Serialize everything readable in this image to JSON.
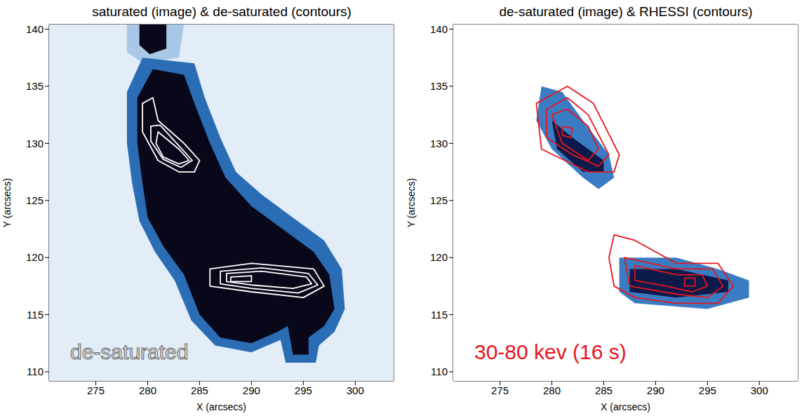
{
  "chart_data": [
    {
      "type": "contour_image",
      "title": "saturated (image) & de-saturated (contours)",
      "xlabel": "X (arcsecs)",
      "ylabel": "Y (arcsecs)",
      "xlim": [
        270.5,
        303.7
      ],
      "ylim": [
        109.2,
        140.4
      ],
      "xticks": [
        275,
        280,
        285,
        290,
        295,
        300
      ],
      "yticks": [
        110,
        115,
        120,
        125,
        130,
        135,
        140
      ],
      "annotation": {
        "text": "de-saturated",
        "color": "#f4f4f4"
      },
      "image": [
        {
          "color": "#e2edf8",
          "points": [
            [
              270.5,
              109.2
            ],
            [
              303.7,
              109.2
            ],
            [
              303.7,
              140.4
            ],
            [
              270.5,
              140.4
            ]
          ]
        },
        {
          "color": "#a9c8e8",
          "points": [
            [
              278,
              140.4
            ],
            [
              283.5,
              140.4
            ],
            [
              283,
              137.5
            ],
            [
              279.5,
              137
            ],
            [
              278,
              138
            ]
          ]
        },
        {
          "color": "#2a6db5",
          "points": [
            [
              279.5,
              137.5
            ],
            [
              284.5,
              137
            ],
            [
              285.5,
              134
            ],
            [
              287,
              130.5
            ],
            [
              288.5,
              127.5
            ],
            [
              291,
              125.5
            ],
            [
              294,
              123.5
            ],
            [
              297,
              121.5
            ],
            [
              298.7,
              119
            ],
            [
              299,
              115.5
            ],
            [
              298,
              113.5
            ],
            [
              296.5,
              112.3
            ],
            [
              296.2,
              110.8
            ],
            [
              293.3,
              110.8
            ],
            [
              292.8,
              112.8
            ],
            [
              290,
              111.7
            ],
            [
              286.5,
              112.3
            ],
            [
              284.2,
              114.5
            ],
            [
              282.6,
              118
            ],
            [
              280.7,
              120.5
            ],
            [
              279.2,
              123.2
            ],
            [
              278.5,
              126.5
            ],
            [
              278,
              130
            ],
            [
              278,
              134.5
            ]
          ]
        },
        {
          "color": "#08081a",
          "points": [
            [
              280.5,
              136.5
            ],
            [
              283.5,
              136
            ],
            [
              284.5,
              133.5
            ],
            [
              286,
              130
            ],
            [
              287.5,
              127
            ],
            [
              290,
              124.5
            ],
            [
              293,
              122.5
            ],
            [
              296,
              120.5
            ],
            [
              297.5,
              118.5
            ],
            [
              298,
              115.5
            ],
            [
              297,
              114
            ],
            [
              295.5,
              113
            ],
            [
              295.5,
              111.5
            ],
            [
              294,
              111.5
            ],
            [
              293.5,
              114
            ],
            [
              292.5,
              113.5
            ],
            [
              290,
              112.5
            ],
            [
              287,
              113
            ],
            [
              285,
              115
            ],
            [
              283.5,
              118.5
            ],
            [
              281.5,
              121
            ],
            [
              280,
              123.5
            ],
            [
              279.5,
              126.5
            ],
            [
              279,
              130
            ],
            [
              279,
              134
            ]
          ]
        },
        {
          "color": "#08081a",
          "points": [
            [
              279.2,
              140.4
            ],
            [
              281.8,
              140.4
            ],
            [
              281.8,
              138.3
            ],
            [
              280.2,
              137.8
            ],
            [
              279.2,
              138.6
            ]
          ]
        }
      ],
      "contours": [
        {
          "color": "#ffffff",
          "points": [
            [
              279.5,
              133.5
            ],
            [
              280.5,
              134
            ],
            [
              281,
              132
            ],
            [
              283.5,
              130
            ],
            [
              285,
              128.5
            ],
            [
              284.5,
              127.5
            ],
            [
              283,
              127.5
            ],
            [
              281,
              128.5
            ],
            [
              279.5,
              131
            ]
          ]
        },
        {
          "color": "#ffffff",
          "points": [
            [
              280.3,
              131.5
            ],
            [
              281.2,
              131.6
            ],
            [
              283,
              129.8
            ],
            [
              284.3,
              128.5
            ],
            [
              283.2,
              127.9
            ],
            [
              281.5,
              128.6
            ],
            [
              280.3,
              130.2
            ]
          ]
        },
        {
          "color": "#ffffff",
          "points": [
            [
              281,
              131
            ],
            [
              283,
              129.5
            ],
            [
              284,
              128.5
            ],
            [
              283,
              128.2
            ],
            [
              281.5,
              128.8
            ],
            [
              280.8,
              130
            ]
          ]
        },
        {
          "color": "#ffffff",
          "points": [
            [
              286,
              119
            ],
            [
              290,
              119.5
            ],
            [
              296,
              119
            ],
            [
              297,
              117.5
            ],
            [
              295,
              116.5
            ],
            [
              290,
              117
            ],
            [
              286,
              117.5
            ]
          ]
        },
        {
          "color": "#ffffff",
          "points": [
            [
              287,
              118.8
            ],
            [
              291,
              119.1
            ],
            [
              295.5,
              118.6
            ],
            [
              296.4,
              117.6
            ],
            [
              294.5,
              116.9
            ],
            [
              290,
              117.3
            ],
            [
              287,
              117.7
            ]
          ]
        },
        {
          "color": "#ffffff",
          "points": [
            [
              287.6,
              118.6
            ],
            [
              291,
              118.8
            ],
            [
              295.3,
              118.3
            ],
            [
              295.8,
              117.7
            ],
            [
              294,
              117.3
            ],
            [
              290,
              117.6
            ],
            [
              287.6,
              117.9
            ]
          ]
        },
        {
          "color": "#ffffff",
          "points": [
            [
              288,
              118.3
            ],
            [
              290,
              118.4
            ],
            [
              290,
              117.9
            ],
            [
              288,
              117.9
            ]
          ]
        }
      ]
    },
    {
      "type": "contour_image",
      "title": "de-saturated (image) & RHESSI (contours)",
      "xlabel": "X (arcsecs)",
      "ylabel": "Y (arcsecs)",
      "xlim": [
        270.5,
        303.7
      ],
      "ylim": [
        109.2,
        140.4
      ],
      "xticks": [
        275,
        280,
        285,
        290,
        295,
        300
      ],
      "yticks": [
        110,
        115,
        120,
        125,
        130,
        135,
        140
      ],
      "annotation": {
        "text": "30-80 kev (16 s)",
        "color": "#e8141c"
      },
      "image": [
        {
          "color": "#ffffff",
          "points": [
            [
              270.5,
              109.2
            ],
            [
              303.7,
              109.2
            ],
            [
              303.7,
              140.4
            ],
            [
              270.5,
              140.4
            ]
          ]
        },
        {
          "color": "#3a7cc4",
          "points": [
            [
              279,
              135
            ],
            [
              281,
              134.5
            ],
            [
              283,
              132
            ],
            [
              285.5,
              129
            ],
            [
              286,
              127
            ],
            [
              284.5,
              126
            ],
            [
              283,
              127
            ],
            [
              280,
              129.5
            ],
            [
              278.5,
              132
            ]
          ]
        },
        {
          "color": "#0b1a4a",
          "points": [
            [
              280,
              132
            ],
            [
              282,
              130.5
            ],
            [
              285,
              128.5
            ],
            [
              285,
              127.5
            ],
            [
              283,
              127.5
            ],
            [
              280.5,
              129.5
            ]
          ]
        },
        {
          "color": "#3a7cc4",
          "points": [
            [
              286.5,
              120
            ],
            [
              292,
              120
            ],
            [
              296,
              119
            ],
            [
              299,
              118
            ],
            [
              299,
              116.5
            ],
            [
              295,
              115.5
            ],
            [
              288,
              116
            ],
            [
              286.5,
              117
            ]
          ]
        },
        {
          "color": "#0b1a4a",
          "points": [
            [
              287.5,
              119
            ],
            [
              292,
              119
            ],
            [
              297,
              118
            ],
            [
              297,
              117
            ],
            [
              292,
              116.5
            ],
            [
              287.5,
              117
            ]
          ]
        }
      ],
      "contours": [
        {
          "color": "#e8141c",
          "points": [
            [
              278.5,
              133.5
            ],
            [
              281.5,
              135
            ],
            [
              284,
              133.5
            ],
            [
              286.5,
              129
            ],
            [
              286,
              127.5
            ],
            [
              283.5,
              127.5
            ],
            [
              279,
              129.5
            ]
          ]
        },
        {
          "color": "#e8141c",
          "points": [
            [
              279.5,
              133
            ],
            [
              281.5,
              134
            ],
            [
              283.5,
              132.5
            ],
            [
              285.5,
              129
            ],
            [
              284.5,
              128
            ],
            [
              282,
              129
            ],
            [
              279.5,
              130.5
            ]
          ]
        },
        {
          "color": "#e8141c",
          "points": [
            [
              280,
              132.5
            ],
            [
              281.5,
              133
            ],
            [
              283.5,
              131.5
            ],
            [
              284.5,
              129.5
            ],
            [
              283.5,
              128.5
            ],
            [
              281,
              130
            ]
          ]
        },
        {
          "color": "#e8141c",
          "points": [
            [
              281,
              131.5
            ],
            [
              282,
              131.3
            ],
            [
              281.8,
              130.5
            ],
            [
              281,
              130.7
            ]
          ]
        },
        {
          "color": "#e8141c",
          "points": [
            [
              286,
              122
            ],
            [
              288,
              121.5
            ],
            [
              292,
              119.5
            ],
            [
              296,
              119.5
            ],
            [
              297.5,
              117.5
            ],
            [
              296,
              116
            ],
            [
              292,
              116
            ],
            [
              288,
              116.5
            ],
            [
              286,
              117.5
            ],
            [
              285.5,
              120
            ]
          ]
        },
        {
          "color": "#e8141c",
          "points": [
            [
              287,
              120
            ],
            [
              292,
              119
            ],
            [
              295.5,
              119
            ],
            [
              296.5,
              117.5
            ],
            [
              295,
              116.5
            ],
            [
              292,
              116.8
            ],
            [
              287.5,
              117.5
            ]
          ]
        },
        {
          "color": "#e8141c",
          "points": [
            [
              288,
              119.3
            ],
            [
              292,
              118.5
            ],
            [
              294.5,
              118.5
            ],
            [
              295,
              117.5
            ],
            [
              293.5,
              117
            ],
            [
              291,
              117.5
            ],
            [
              288,
              118
            ]
          ]
        },
        {
          "color": "#e8141c",
          "points": [
            [
              292.8,
              118.2
            ],
            [
              293.8,
              118.2
            ],
            [
              293.8,
              117.5
            ],
            [
              292.8,
              117.5
            ]
          ]
        }
      ]
    }
  ]
}
